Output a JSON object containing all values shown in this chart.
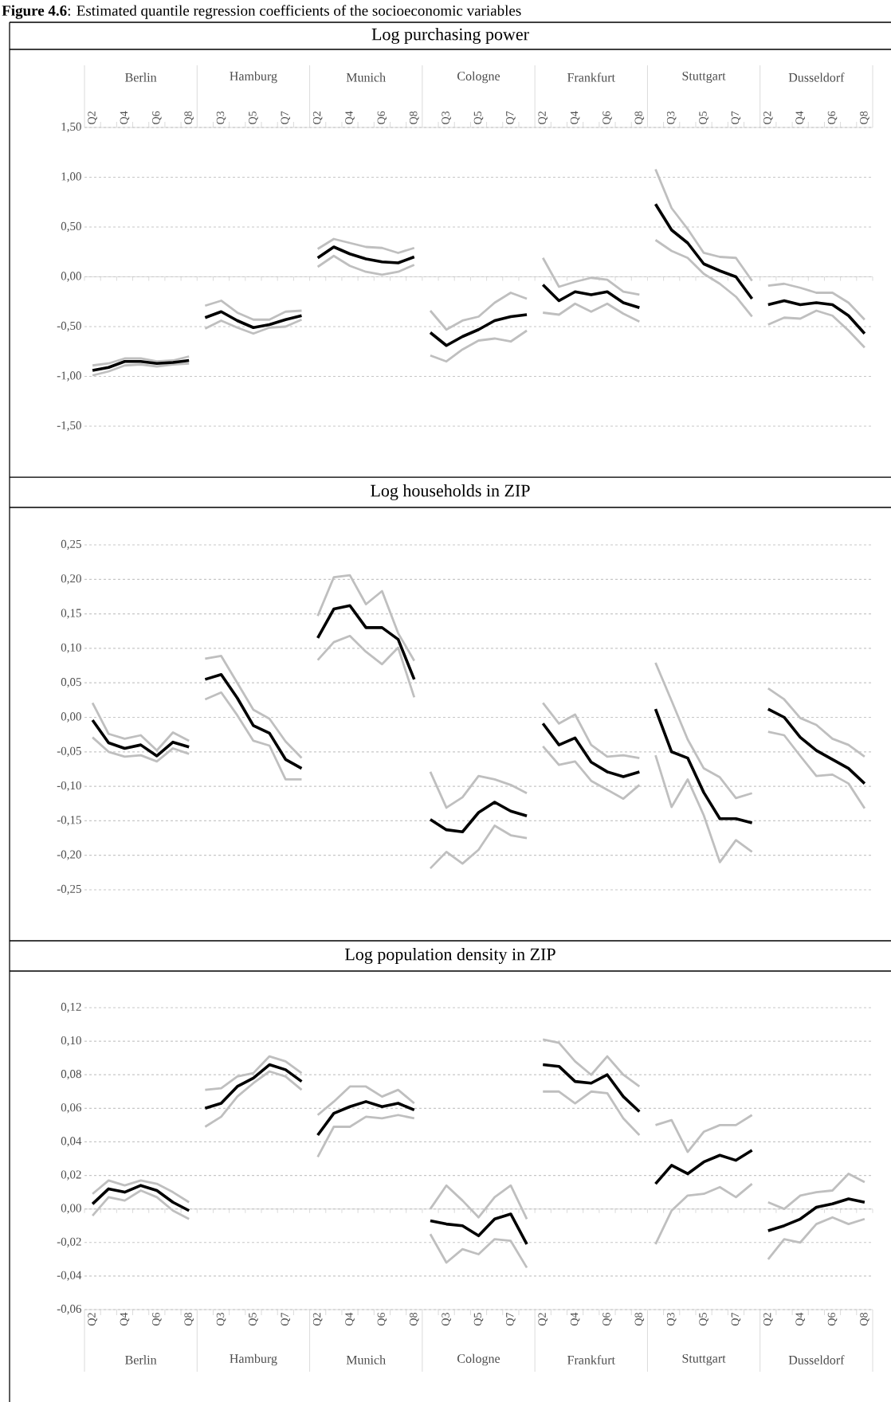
{
  "chart_data": [
    {
      "type": "line",
      "title": "**Figure 4.6**: Estimated quantile regression coefficients of the socioeconomic variables",
      "subtitle": "Log purchasing power",
      "categories": [
        "Q2",
        null,
        "Q4",
        null,
        "Q6",
        null,
        "Q8",
        null,
        "Q3",
        null,
        "Q5",
        null,
        "Q7",
        null,
        "Q2",
        null,
        "Q4",
        null,
        "Q6",
        null,
        "Q8",
        null,
        "Q3",
        null,
        "Q5",
        null,
        "Q7",
        null,
        "Q2",
        null,
        "Q4",
        null,
        "Q6",
        null,
        "Q8",
        null,
        "Q3",
        null,
        "Q5",
        null,
        "Q7",
        null,
        "Q2",
        null,
        "Q4",
        null,
        "Q6",
        null,
        "Q8"
      ],
      "annotations": [
        "Berlin",
        "Hamburg",
        "Munich",
        "Cologne",
        "Frankfurt",
        "Stuttgart",
        "Dusseldorf"
      ],
      "series": [
        {
          "color": "#000000",
          "values": [
            -0.94,
            -0.91,
            -0.85,
            -0.85,
            -0.87,
            -0.86,
            -0.84,
            -0.41,
            -0.35,
            -0.44,
            -0.51,
            -0.48,
            -0.43,
            -0.39,
            0.19,
            0.3,
            0.23,
            0.18,
            0.15,
            0.14,
            0.2,
            -0.56,
            -0.69,
            -0.6,
            -0.53,
            -0.44,
            -0.4,
            -0.38,
            -0.08,
            -0.24,
            -0.15,
            -0.18,
            -0.15,
            -0.26,
            -0.31,
            0.73,
            0.47,
            0.34,
            0.13,
            0.06,
            0.0,
            -0.22,
            -0.28,
            -0.24,
            -0.28,
            -0.26,
            -0.28,
            -0.39,
            -0.57
          ]
        },
        {
          "color": "#bfbfbf",
          "values": [
            -0.89,
            -0.87,
            -0.82,
            -0.82,
            -0.85,
            -0.84,
            -0.8,
            -0.29,
            -0.24,
            -0.36,
            -0.43,
            -0.43,
            -0.35,
            -0.34,
            0.28,
            0.38,
            0.34,
            0.3,
            0.29,
            0.24,
            0.29,
            -0.34,
            -0.53,
            -0.44,
            -0.4,
            -0.26,
            -0.16,
            -0.22,
            0.19,
            -0.1,
            -0.05,
            -0.01,
            -0.03,
            -0.15,
            -0.18,
            1.08,
            0.69,
            0.48,
            0.24,
            0.2,
            0.19,
            -0.04,
            -0.09,
            -0.07,
            -0.11,
            -0.16,
            -0.16,
            -0.26,
            -0.43
          ]
        },
        {
          "color": "#bfbfbf",
          "values": [
            -0.99,
            -0.95,
            -0.89,
            -0.88,
            -0.9,
            -0.88,
            -0.87,
            -0.52,
            -0.44,
            -0.51,
            -0.57,
            -0.51,
            -0.5,
            -0.43,
            0.1,
            0.21,
            0.11,
            0.05,
            0.02,
            0.05,
            0.12,
            -0.79,
            -0.85,
            -0.73,
            -0.64,
            -0.62,
            -0.65,
            -0.54,
            -0.36,
            -0.38,
            -0.27,
            -0.35,
            -0.27,
            -0.37,
            -0.45,
            0.37,
            0.26,
            0.19,
            0.03,
            -0.07,
            -0.2,
            -0.4,
            -0.48,
            -0.41,
            -0.42,
            -0.34,
            -0.39,
            -0.54,
            -0.71
          ]
        }
      ],
      "ylim": [
        -1.5,
        1.5
      ],
      "yticks": [
        {
          "value": -1.5,
          "label": "-1,50"
        },
        {
          "value": -1,
          "label": "-1,00"
        },
        {
          "value": -0.5,
          "label": "-0,50"
        },
        {
          "value": 0,
          "label": "0,00"
        },
        {
          "value": 0.5,
          "label": "0,50"
        },
        {
          "value": 1,
          "label": "1,00"
        },
        {
          "value": 1.5,
          "label": "1,50"
        }
      ],
      "grid": "y"
    },
    {
      "type": "line",
      "title": "Log households in ZIP",
      "categories": [
        null,
        null,
        null,
        null,
        null,
        null,
        null,
        null,
        null,
        null,
        null,
        null,
        null,
        null,
        null,
        null,
        null,
        null,
        null,
        null,
        null,
        null,
        null,
        null,
        null,
        null,
        null,
        null,
        null,
        null,
        null,
        null,
        null,
        null,
        null,
        null,
        null,
        null,
        null,
        null,
        null,
        null,
        null,
        null,
        null,
        null,
        null,
        null,
        null
      ],
      "tick_labels": "y",
      "series": [
        {
          "color": "#000000",
          "values": [
            -0.004,
            -0.037,
            -0.045,
            -0.04,
            -0.056,
            -0.036,
            -0.043,
            0.055,
            0.062,
            0.028,
            -0.012,
            -0.023,
            -0.061,
            -0.074,
            0.115,
            0.157,
            0.162,
            0.13,
            0.13,
            0.113,
            0.055,
            -0.148,
            -0.163,
            -0.166,
            -0.138,
            -0.123,
            -0.136,
            -0.143,
            -0.009,
            -0.04,
            -0.03,
            -0.065,
            -0.079,
            -0.086,
            -0.079,
            0.012,
            -0.05,
            -0.059,
            -0.109,
            -0.147,
            -0.147,
            -0.153,
            0.012,
            0.0,
            -0.029,
            -0.048,
            -0.061,
            -0.074,
            -0.096
          ]
        },
        {
          "color": "#bfbfbf",
          "values": [
            0.021,
            -0.024,
            -0.031,
            -0.026,
            -0.048,
            -0.022,
            -0.034,
            0.085,
            0.089,
            0.05,
            0.011,
            -0.002,
            -0.035,
            -0.059,
            0.147,
            0.203,
            0.206,
            0.164,
            0.183,
            0.122,
            0.082,
            -0.079,
            -0.131,
            -0.116,
            -0.085,
            -0.09,
            -0.098,
            -0.11,
            0.021,
            -0.009,
            0.004,
            -0.04,
            -0.057,
            -0.055,
            -0.059,
            0.079,
            0.024,
            -0.032,
            -0.074,
            -0.087,
            -0.117,
            -0.11,
            0.042,
            0.026,
            -0.001,
            -0.011,
            -0.031,
            -0.04,
            -0.057
          ]
        },
        {
          "color": "#bfbfbf",
          "values": [
            -0.029,
            -0.05,
            -0.057,
            -0.055,
            -0.064,
            -0.045,
            -0.053,
            0.026,
            0.036,
            0.003,
            -0.034,
            -0.041,
            -0.09,
            -0.09,
            0.083,
            0.109,
            0.118,
            0.095,
            0.077,
            0.101,
            0.029,
            -0.219,
            -0.195,
            -0.212,
            -0.192,
            -0.157,
            -0.171,
            -0.175,
            -0.042,
            -0.069,
            -0.064,
            -0.092,
            -0.105,
            -0.118,
            -0.098,
            -0.055,
            -0.13,
            -0.09,
            -0.142,
            -0.21,
            -0.178,
            -0.195,
            -0.021,
            -0.026,
            -0.056,
            -0.085,
            -0.083,
            -0.096,
            -0.132
          ]
        }
      ],
      "ylim": [
        -0.25,
        0.25
      ],
      "yticks": [
        {
          "value": -0.25,
          "label": "-0,25"
        },
        {
          "value": -0.2,
          "label": "-0,20"
        },
        {
          "value": -0.15,
          "label": "-0,15"
        },
        {
          "value": -0.1,
          "label": "-0,10"
        },
        {
          "value": -0.05,
          "label": "-0,05"
        },
        {
          "value": 0,
          "label": "0,00"
        },
        {
          "value": 0.05,
          "label": "0,05"
        },
        {
          "value": 0.1,
          "label": "0,10"
        },
        {
          "value": 0.15,
          "label": "0,15"
        },
        {
          "value": 0.2,
          "label": "0,20"
        },
        {
          "value": 0.25,
          "label": "0,25"
        }
      ],
      "grid": "y"
    },
    {
      "type": "line",
      "title": "Log population density in ZIP",
      "categories": [
        "Q2",
        null,
        "Q4",
        null,
        "Q6",
        null,
        "Q8",
        null,
        "Q3",
        null,
        "Q5",
        null,
        "Q7",
        null,
        "Q2",
        null,
        "Q4",
        null,
        "Q6",
        null,
        "Q8",
        null,
        "Q3",
        null,
        "Q5",
        null,
        "Q7",
        null,
        "Q2",
        null,
        "Q4",
        null,
        "Q6",
        null,
        "Q8",
        null,
        "Q3",
        null,
        "Q5",
        null,
        "Q7",
        null,
        "Q2",
        null,
        "Q4",
        null,
        "Q6",
        null,
        "Q8"
      ],
      "annotations": [
        "Berlin",
        "Hamburg",
        "Munich",
        "Cologne",
        "Frankfurt",
        "Stuttgart",
        "Dusseldorf"
      ],
      "series": [
        {
          "color": "#000000",
          "values": [
            0.003,
            0.012,
            0.01,
            0.014,
            0.011,
            0.004,
            -0.001,
            0.06,
            0.063,
            0.073,
            0.078,
            0.086,
            0.083,
            0.076,
            0.044,
            0.057,
            0.061,
            0.064,
            0.061,
            0.063,
            0.059,
            -0.007,
            -0.009,
            -0.01,
            -0.016,
            -0.006,
            -0.003,
            -0.021,
            0.086,
            0.085,
            0.076,
            0.075,
            0.08,
            0.067,
            0.058,
            0.015,
            0.026,
            0.021,
            0.028,
            0.032,
            0.029,
            0.035,
            -0.013,
            -0.01,
            -0.006,
            0.001,
            0.003,
            0.006,
            0.004
          ]
        },
        {
          "color": "#bfbfbf",
          "values": [
            0.009,
            0.017,
            0.014,
            0.017,
            0.015,
            0.01,
            0.004,
            0.071,
            0.072,
            0.079,
            0.081,
            0.091,
            0.088,
            0.081,
            0.056,
            0.064,
            0.073,
            0.073,
            0.067,
            0.071,
            0.063,
            0.0,
            0.014,
            0.005,
            -0.005,
            0.007,
            0.014,
            -0.006,
            0.101,
            0.099,
            0.088,
            0.08,
            0.091,
            0.08,
            0.073,
            0.05,
            0.053,
            0.034,
            0.046,
            0.05,
            0.05,
            0.056,
            0.004,
            0.0,
            0.008,
            0.01,
            0.011,
            0.021,
            0.016
          ]
        },
        {
          "color": "#bfbfbf",
          "values": [
            -0.004,
            0.007,
            0.005,
            0.011,
            0.007,
            -0.001,
            -0.006,
            0.049,
            0.055,
            0.067,
            0.075,
            0.082,
            0.079,
            0.071,
            0.031,
            0.049,
            0.049,
            0.055,
            0.054,
            0.056,
            0.054,
            -0.015,
            -0.032,
            -0.024,
            -0.027,
            -0.018,
            -0.019,
            -0.035,
            0.07,
            0.07,
            0.063,
            0.07,
            0.069,
            0.054,
            0.044,
            -0.021,
            -0.001,
            0.008,
            0.009,
            0.013,
            0.007,
            0.015,
            -0.03,
            -0.018,
            -0.02,
            -0.009,
            -0.005,
            -0.009,
            -0.006
          ]
        }
      ],
      "ylim": [
        -0.06,
        0.12
      ],
      "yticks": [
        {
          "value": -0.06,
          "label": "-0,06"
        },
        {
          "value": -0.04,
          "label": "-0,04"
        },
        {
          "value": -0.02,
          "label": "-0,02"
        },
        {
          "value": 0,
          "label": "0,00"
        },
        {
          "value": 0.02,
          "label": "0,02"
        },
        {
          "value": 0.04,
          "label": "0,04"
        },
        {
          "value": 0.06,
          "label": "0,06"
        },
        {
          "value": 0.08,
          "label": "0,08"
        },
        {
          "value": 0.1,
          "label": "0,10"
        },
        {
          "value": 0.12,
          "label": "0,12"
        }
      ],
      "grid": "y"
    }
  ]
}
